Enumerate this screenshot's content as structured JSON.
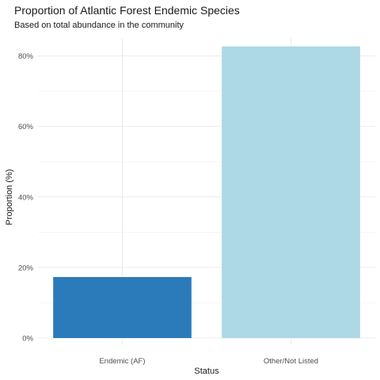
{
  "chart_data": {
    "type": "bar",
    "title": "Proportion of Atlantic Forest Endemic Species",
    "subtitle": "Based on total abundance in the community",
    "xlabel": "Status",
    "ylabel": "Proportion (%)",
    "categories": [
      "Endemic (AF)",
      "Other/Not Listed"
    ],
    "values": [
      17.3,
      82.7
    ],
    "colors": [
      "#2b7bba",
      "#add8e6"
    ],
    "ylim": [
      0,
      85
    ],
    "yticks": [
      0,
      20,
      40,
      60,
      80
    ],
    "ytick_labels": [
      "0%",
      "20%",
      "40%",
      "60%",
      "80%"
    ],
    "grid": true,
    "legend": "none"
  }
}
